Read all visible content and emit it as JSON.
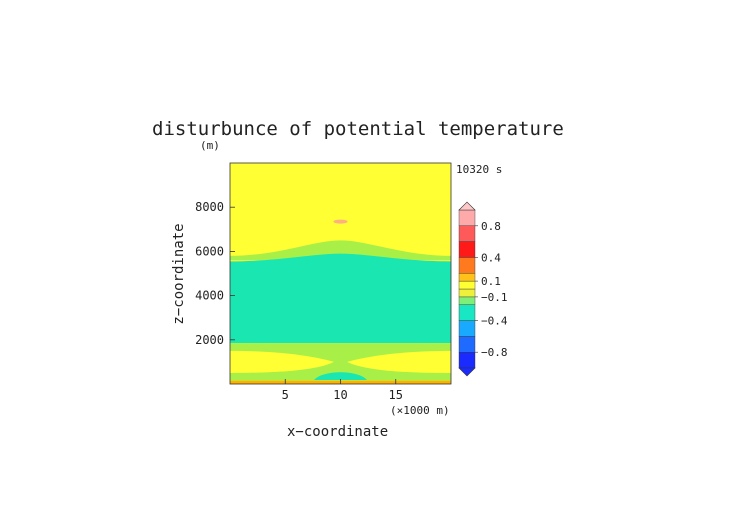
{
  "chart_data": {
    "type": "heatmap",
    "title": "disturbunce of potential temperature",
    "time_label": "10320 s",
    "xlabel": "x−coordinate",
    "ylabel": "z−coordinate",
    "y_unit": "(m)",
    "x_unit": "(×1000 m)",
    "xlim": [
      0,
      20
    ],
    "ylim": [
      0,
      10000
    ],
    "x_ticks": [
      {
        "value": 5,
        "label": "5"
      },
      {
        "value": 10,
        "label": "10"
      },
      {
        "value": 15,
        "label": "15"
      }
    ],
    "y_ticks": [
      {
        "value": 2000,
        "label": "2000"
      },
      {
        "value": 4000,
        "label": "4000"
      },
      {
        "value": 6000,
        "label": "6000"
      },
      {
        "value": 8000,
        "label": "8000"
      }
    ],
    "colorbar": {
      "extend": "both",
      "bins": [
        {
          "from": -1.0,
          "to": -0.8,
          "color": "#1a2bff"
        },
        {
          "from": -0.8,
          "to": -0.6,
          "color": "#1f6bff"
        },
        {
          "from": -0.6,
          "to": -0.4,
          "color": "#19aaff"
        },
        {
          "from": -0.4,
          "to": -0.2,
          "color": "#19e6c3"
        },
        {
          "from": -0.2,
          "to": -0.1,
          "color": "#7ef07a"
        },
        {
          "from": -0.1,
          "to": 0.0,
          "color": "#eef03c"
        },
        {
          "from": 0.0,
          "to": 0.1,
          "color": "#ffff33"
        },
        {
          "from": 0.1,
          "to": 0.2,
          "color": "#ffc219"
        },
        {
          "from": 0.2,
          "to": 0.4,
          "color": "#ff7a1f"
        },
        {
          "from": 0.4,
          "to": 0.6,
          "color": "#ff1a1a"
        },
        {
          "from": 0.6,
          "to": 0.8,
          "color": "#ff5a5a"
        },
        {
          "from": 0.8,
          "to": 1.0,
          "color": "#ffaaaa"
        }
      ],
      "under_color": "#1a2bff",
      "over_color": "#ffc8c8",
      "tick_labels": [
        {
          "value": 0.8,
          "label": "0.8"
        },
        {
          "value": 0.4,
          "label": "0.4"
        },
        {
          "value": 0.1,
          "label": "0.1"
        },
        {
          "value": -0.1,
          "label": "−0.1"
        },
        {
          "value": -0.4,
          "label": "−0.4"
        },
        {
          "value": -0.8,
          "label": "−0.8"
        }
      ]
    },
    "field_colors": {
      "positive_small": "#ffff33",
      "near_zero_negative": "#a8f048",
      "negative_moderate": "#19e6b0",
      "positive_patch": "#ffb080",
      "bottom_edge": "#ffb000"
    }
  }
}
